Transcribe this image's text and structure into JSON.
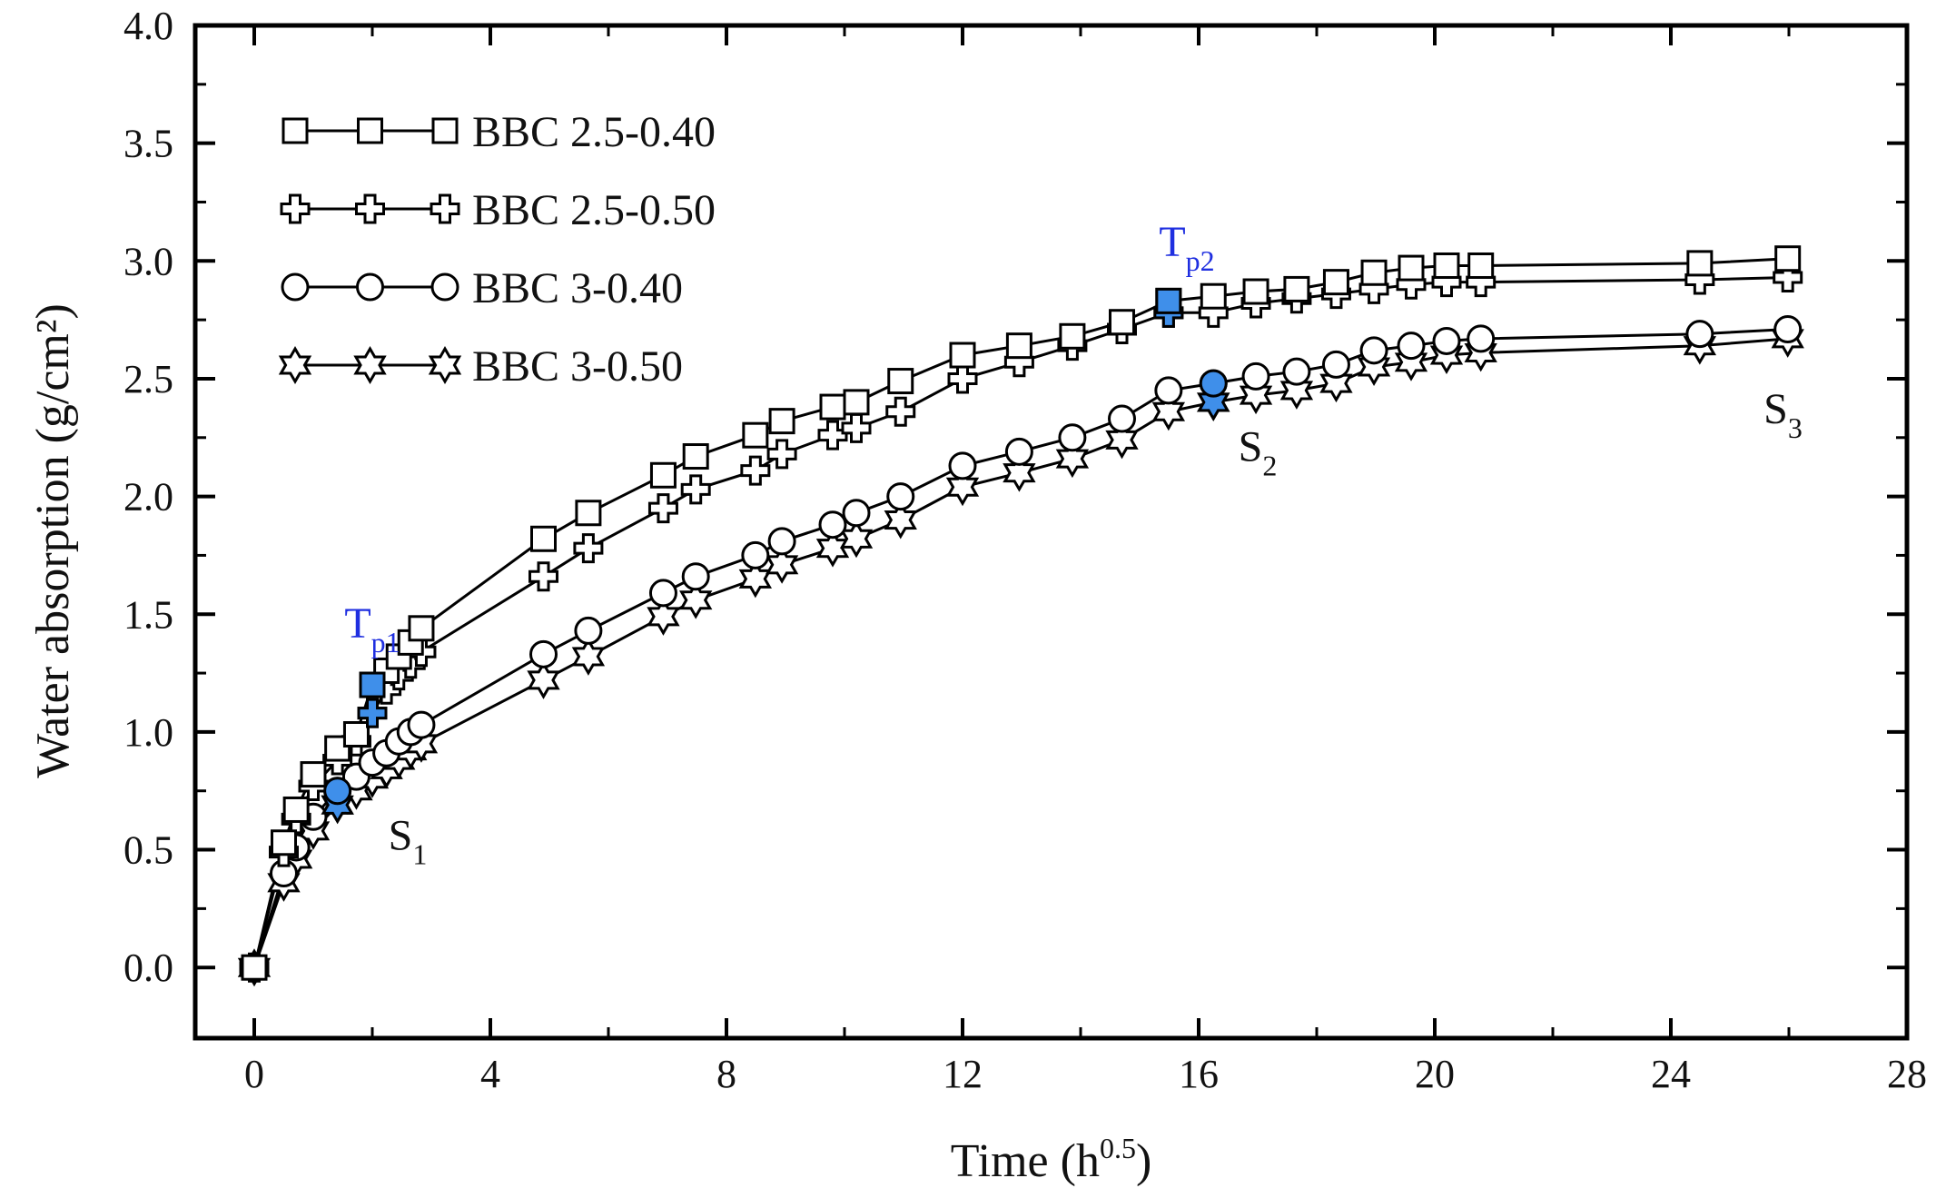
{
  "chart_data": {
    "type": "line",
    "title": "",
    "xlabel": "Time (h",
    "xlabel_sup": "0.5",
    "xlabel_close": ")",
    "ylabel": "Water absorption (g/cm²)",
    "xlim": [
      -1,
      28
    ],
    "ylim": [
      -0.3,
      4.0
    ],
    "x_ticks": [
      0,
      4,
      8,
      12,
      16,
      20,
      24,
      28
    ],
    "x_tick_labels": [
      "0",
      "4",
      "8",
      "12",
      "16",
      "20",
      "24",
      "28"
    ],
    "y_ticks": [
      0.0,
      0.5,
      1.0,
      1.5,
      2.0,
      2.5,
      3.0,
      3.5,
      4.0
    ],
    "y_tick_labels": [
      "0.0",
      "0.5",
      "1.0",
      "1.5",
      "2.0",
      "2.5",
      "3.0",
      "3.5",
      "4.0"
    ],
    "grid": false,
    "legend_position": "top-left",
    "highlight_color": "#3f8fea",
    "series": [
      {
        "name": "BBC 2.5-0.40",
        "marker": "square",
        "x": [
          0,
          0.5,
          0.71,
          1.0,
          1.41,
          1.73,
          2.0,
          2.24,
          2.45,
          2.65,
          2.83,
          4.9,
          5.66,
          6.93,
          7.48,
          8.49,
          8.94,
          9.8,
          10.2,
          10.95,
          12.0,
          12.96,
          13.86,
          14.7,
          15.49,
          16.25,
          16.97,
          17.66,
          18.33,
          18.97,
          19.6,
          20.2,
          20.78,
          24.49,
          25.98
        ],
        "values": [
          0,
          0.53,
          0.67,
          0.82,
          0.93,
          0.99,
          1.2,
          1.26,
          1.32,
          1.38,
          1.44,
          1.82,
          1.93,
          2.09,
          2.17,
          2.26,
          2.32,
          2.38,
          2.4,
          2.49,
          2.6,
          2.64,
          2.68,
          2.74,
          2.83,
          2.85,
          2.87,
          2.88,
          2.91,
          2.95,
          2.97,
          2.98,
          2.98,
          2.99,
          3.01
        ]
      },
      {
        "name": "BBC 2.5-0.50",
        "marker": "plus",
        "x": [
          0,
          0.5,
          0.71,
          1.0,
          1.41,
          1.73,
          2.0,
          2.24,
          2.45,
          2.65,
          2.83,
          4.9,
          5.66,
          6.93,
          7.48,
          8.49,
          8.94,
          9.8,
          10.2,
          10.95,
          12.0,
          12.96,
          13.86,
          14.7,
          15.49,
          16.25,
          16.97,
          17.66,
          18.33,
          18.97,
          19.6,
          20.2,
          20.78,
          24.49,
          25.98
        ],
        "values": [
          0,
          0.49,
          0.63,
          0.77,
          0.88,
          0.96,
          1.08,
          1.18,
          1.24,
          1.29,
          1.34,
          1.66,
          1.78,
          1.95,
          2.03,
          2.11,
          2.18,
          2.26,
          2.29,
          2.36,
          2.5,
          2.57,
          2.64,
          2.71,
          2.78,
          2.78,
          2.82,
          2.84,
          2.86,
          2.88,
          2.9,
          2.91,
          2.91,
          2.92,
          2.93
        ]
      },
      {
        "name": "BBC 3-0.40",
        "marker": "circle",
        "x": [
          0,
          0.5,
          0.71,
          1.0,
          1.41,
          1.73,
          2.0,
          2.24,
          2.45,
          2.65,
          2.83,
          4.9,
          5.66,
          6.93,
          7.48,
          8.49,
          8.94,
          9.8,
          10.2,
          10.95,
          12.0,
          12.96,
          13.86,
          14.7,
          15.49,
          16.25,
          16.97,
          17.66,
          18.33,
          18.97,
          19.6,
          20.2,
          20.78,
          24.49,
          25.98
        ],
        "values": [
          0,
          0.4,
          0.51,
          0.64,
          0.75,
          0.81,
          0.87,
          0.91,
          0.96,
          1.0,
          1.03,
          1.33,
          1.43,
          1.59,
          1.66,
          1.75,
          1.81,
          1.88,
          1.93,
          2.0,
          2.13,
          2.19,
          2.25,
          2.33,
          2.45,
          2.48,
          2.51,
          2.53,
          2.56,
          2.62,
          2.64,
          2.66,
          2.67,
          2.69,
          2.71
        ]
      },
      {
        "name": "BBC 3-0.50",
        "marker": "star",
        "x": [
          0,
          0.5,
          0.71,
          1.0,
          1.41,
          1.73,
          2.0,
          2.24,
          2.45,
          2.65,
          2.83,
          4.9,
          5.66,
          6.93,
          7.48,
          8.49,
          8.94,
          9.8,
          10.2,
          10.95,
          12.0,
          12.96,
          13.86,
          14.7,
          15.49,
          16.25,
          16.97,
          17.66,
          18.33,
          18.97,
          19.6,
          20.2,
          20.78,
          24.49,
          25.98
        ],
        "values": [
          0,
          0.36,
          0.46,
          0.58,
          0.69,
          0.75,
          0.8,
          0.84,
          0.88,
          0.92,
          0.95,
          1.22,
          1.32,
          1.49,
          1.56,
          1.65,
          1.71,
          1.78,
          1.82,
          1.9,
          2.04,
          2.1,
          2.16,
          2.24,
          2.36,
          2.4,
          2.43,
          2.45,
          2.48,
          2.55,
          2.57,
          2.6,
          2.61,
          2.64,
          2.67
        ]
      }
    ],
    "highlighted_points": [
      {
        "series": "BBC 2.5-0.40",
        "marker": "square",
        "x": 2.0,
        "y": 1.2
      },
      {
        "series": "BBC 2.5-0.50",
        "marker": "plus",
        "x": 2.0,
        "y": 1.08
      },
      {
        "series": "BBC 2.5-0.40",
        "marker": "square",
        "x": 15.49,
        "y": 2.83
      },
      {
        "series": "BBC 2.5-0.50",
        "marker": "plus",
        "x": 15.49,
        "y": 2.78
      },
      {
        "series": "BBC 3-0.40",
        "marker": "circle",
        "x": 1.41,
        "y": 0.75
      },
      {
        "series": "BBC 3-0.50",
        "marker": "star",
        "x": 1.41,
        "y": 0.69
      },
      {
        "series": "BBC 3-0.40",
        "marker": "circle",
        "x": 16.25,
        "y": 2.48
      },
      {
        "series": "BBC 3-0.50",
        "marker": "star",
        "x": 16.25,
        "y": 2.4
      }
    ],
    "annotations": [
      {
        "id": "tp1",
        "base": "T",
        "sub": "p1",
        "x": 2.0,
        "y": 1.4,
        "color": "#1f2fe0"
      },
      {
        "id": "tp2",
        "base": "T",
        "sub": "p2",
        "x": 15.8,
        "y": 3.02,
        "color": "#1f2fe0"
      },
      {
        "id": "s1",
        "base": "S",
        "sub": "1",
        "x": 2.6,
        "y": 0.5,
        "color": "#111111"
      },
      {
        "id": "s2",
        "base": "S",
        "sub": "2",
        "x": 17.0,
        "y": 2.15,
        "color": "#111111"
      },
      {
        "id": "s3",
        "base": "S",
        "sub": "3",
        "x": 25.9,
        "y": 2.31,
        "color": "#111111"
      }
    ]
  }
}
